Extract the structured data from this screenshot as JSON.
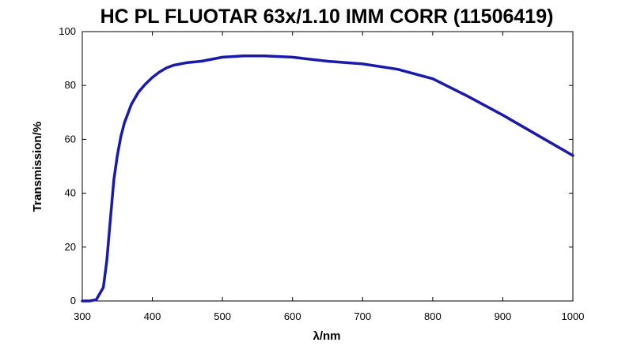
{
  "chart_data": {
    "type": "line",
    "title": "HC PL FLUOTAR 63x/1.10 IMM CORR (11506419)",
    "xlabel": "λ/nm",
    "ylabel": "Transmission/%",
    "xlim": [
      300,
      1000
    ],
    "ylim": [
      0,
      100
    ],
    "xticks": [
      300,
      400,
      500,
      600,
      700,
      800,
      900,
      1000
    ],
    "yticks": [
      0,
      20,
      40,
      60,
      80,
      100
    ],
    "grid": false,
    "series_color": "#1a1aaa",
    "series": [
      {
        "x": [
          300,
          310,
          320,
          330,
          335,
          340,
          345,
          350,
          355,
          360,
          370,
          380,
          390,
          400,
          410,
          420,
          430,
          450,
          470,
          500,
          530,
          560,
          600,
          650,
          700,
          750,
          800,
          850,
          900,
          950,
          1000
        ],
        "y": [
          0,
          0,
          0.5,
          5,
          15,
          30,
          45,
          54,
          61,
          66,
          73,
          77.5,
          80.5,
          83,
          85,
          86.5,
          87.5,
          88.5,
          89,
          90.5,
          91,
          91,
          90.5,
          89,
          88,
          86,
          82.5,
          76,
          69,
          61.5,
          54
        ]
      }
    ]
  }
}
